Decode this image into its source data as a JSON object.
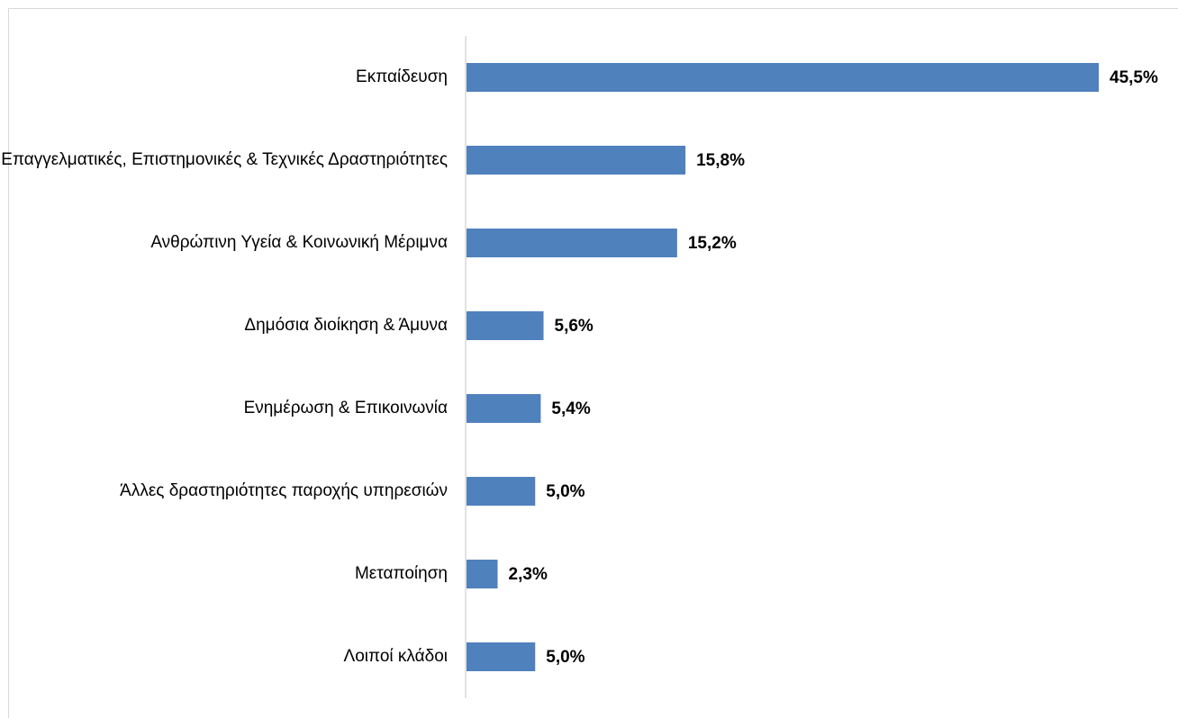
{
  "chart_data": {
    "type": "bar",
    "orientation": "horizontal",
    "categories": [
      "Εκπαίδευση",
      "Επαγγελματικές, Επιστημονικές  & Τεχνικές Δραστηριότητες",
      "Ανθρώπινη Υγεία & Κοινωνική Μέριμνα",
      "Δημόσια διοίκηση & Άμυνα",
      "Ενημέρωση & Επικοινωνία",
      "Άλλες δραστηριότητες παροχής υπηρεσιών",
      "Μεταποίηση",
      "Λοιποί κλάδοι"
    ],
    "values": [
      45.5,
      15.8,
      15.2,
      5.6,
      5.4,
      5.0,
      2.3,
      5.0
    ],
    "value_labels": [
      "45,5%",
      "15,8%",
      "15,2%",
      "5,6%",
      "5,4%",
      "5,0%",
      "2,3%",
      "5,0%"
    ],
    "color": "#4f81bd",
    "grid": false
  }
}
